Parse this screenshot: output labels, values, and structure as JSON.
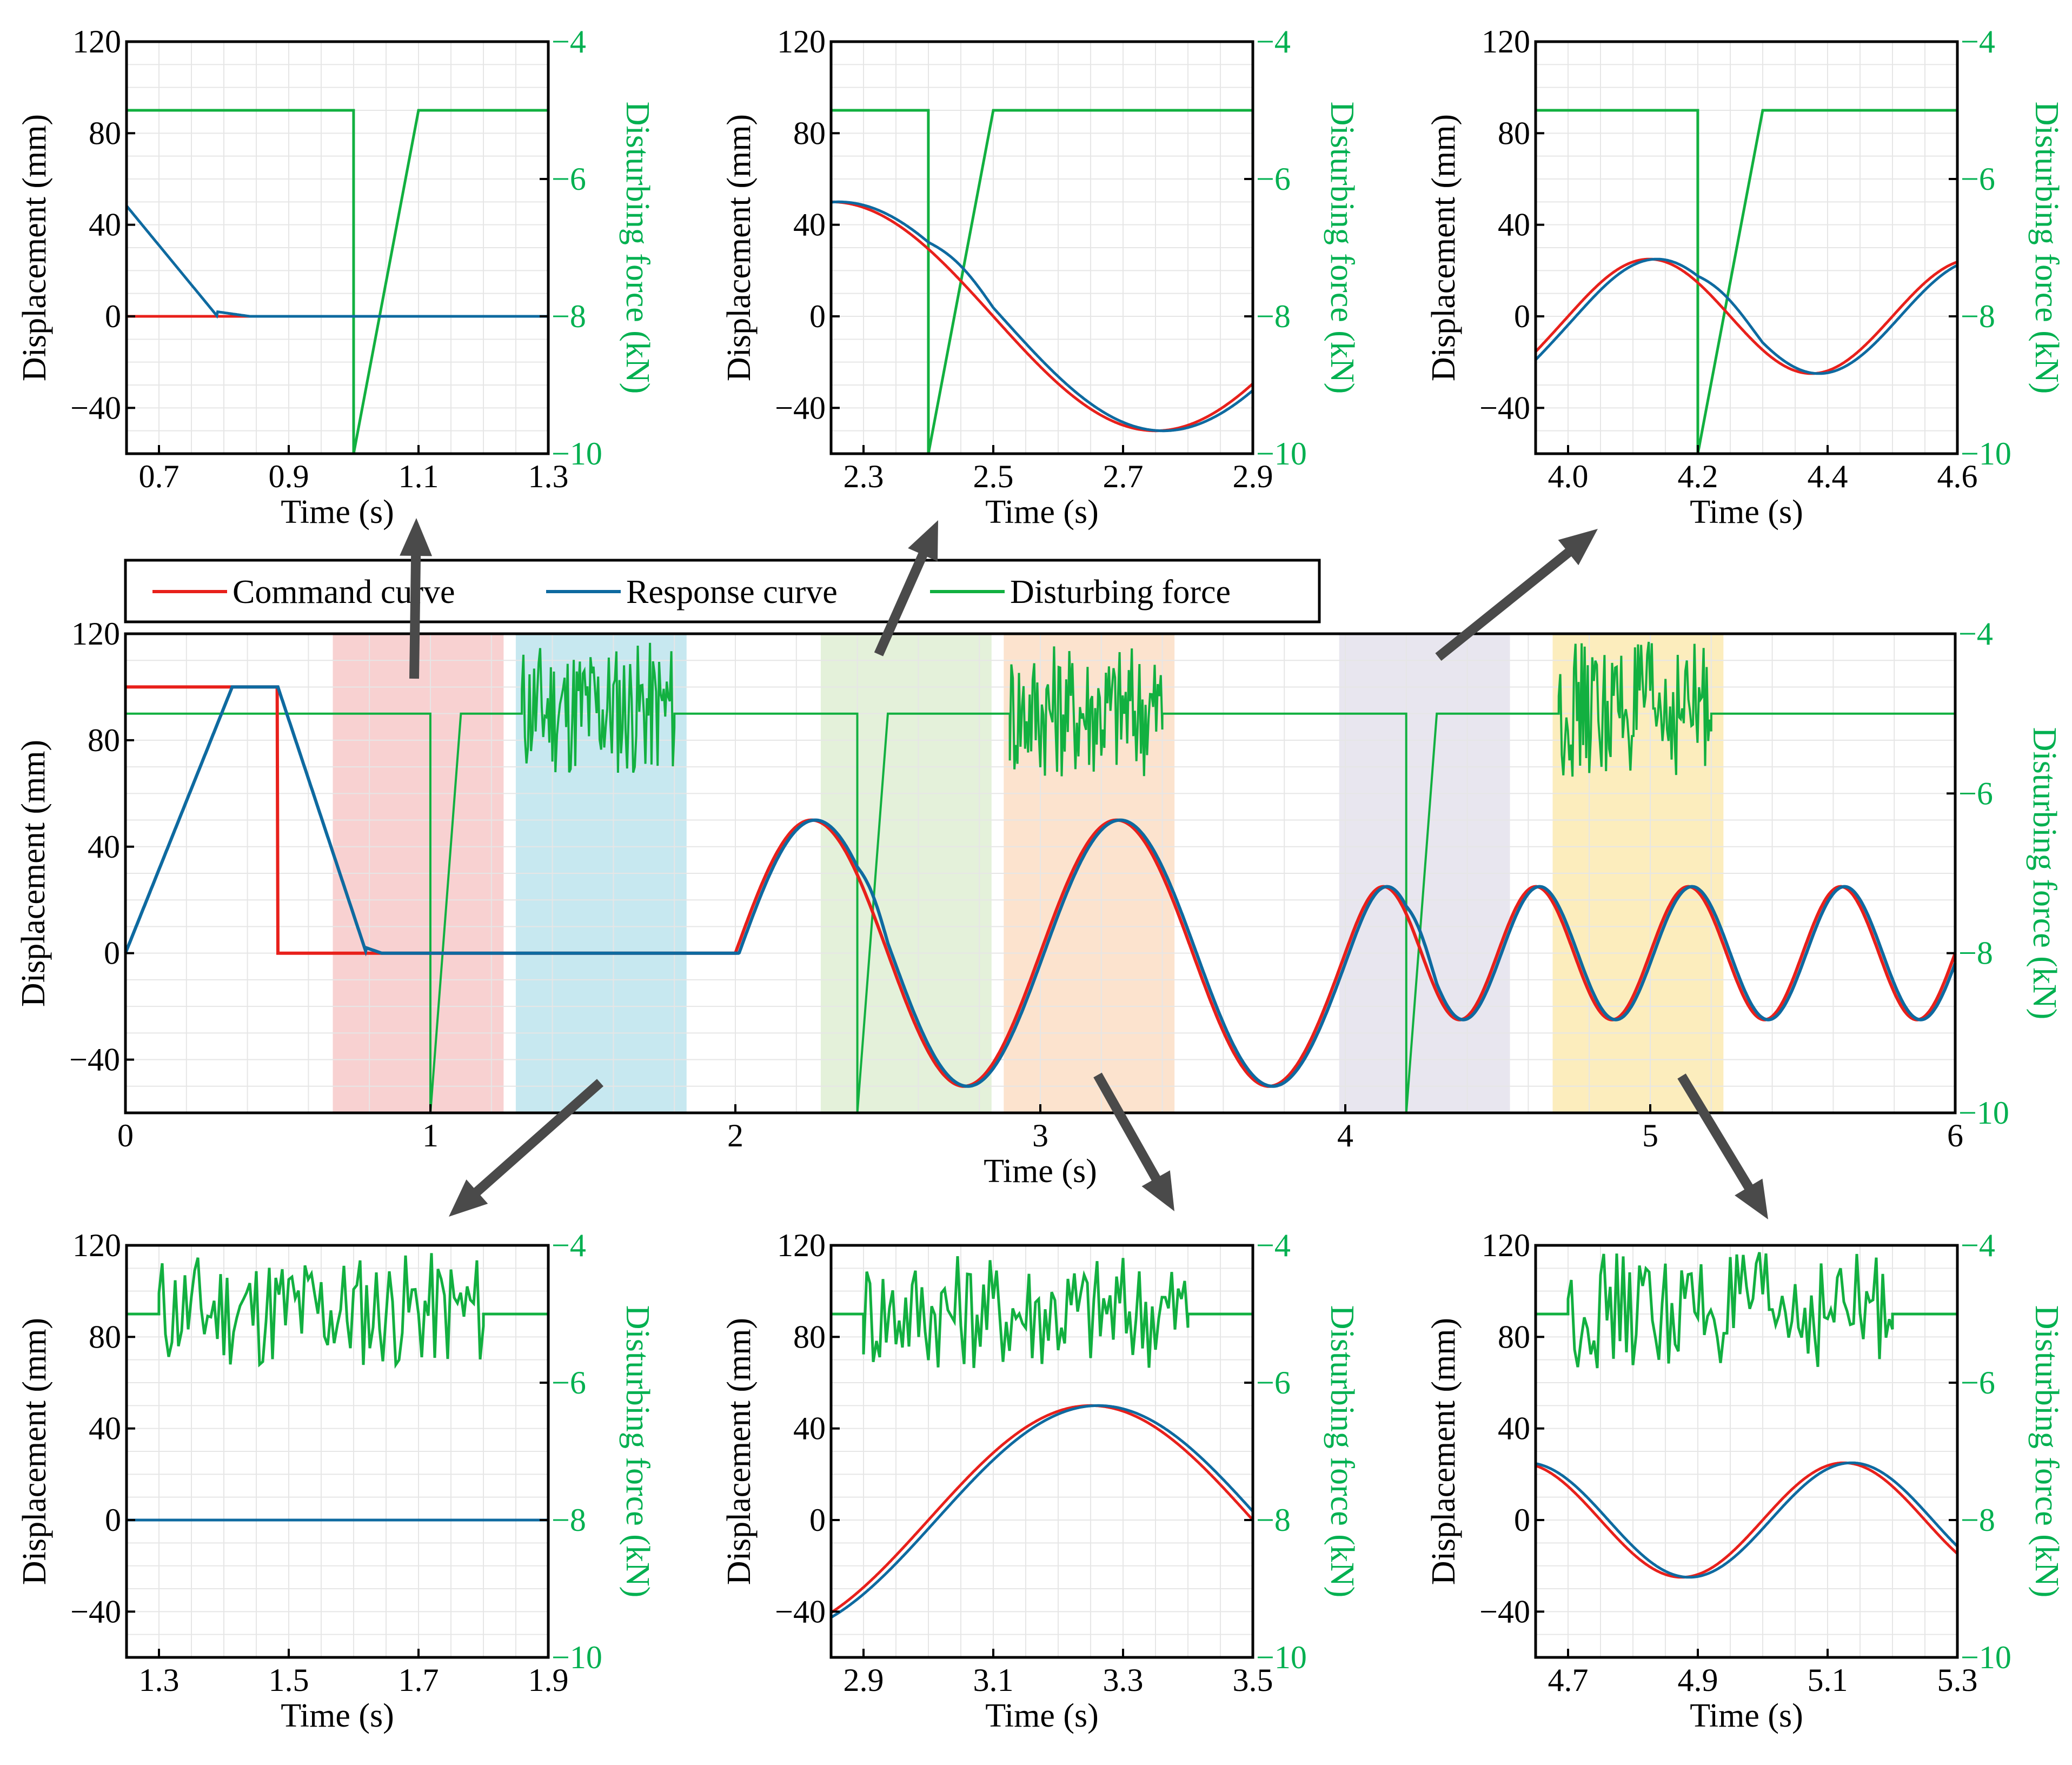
{
  "colors": {
    "command": "#e8201b",
    "response": "#0e6aa0",
    "disturb": "#12b040",
    "arrow": "#4a4a4a",
    "grid": "#e6e6e6"
  },
  "legend": {
    "command_label": "Command curve",
    "response_label": "Response curve",
    "disturb_label": "Disturbing force"
  },
  "chart_data": [
    {
      "id": "main",
      "type": "line",
      "xlabel": "Time (s)",
      "ylabel": "Displacement (mm)",
      "y2label": "Disturbing force (kN)",
      "xlim": [
        0,
        6
      ],
      "ylim": [
        -60,
        120
      ],
      "y2lim": [
        -10,
        -4
      ],
      "xticks": [
        0,
        1,
        2,
        3,
        4,
        5,
        6
      ],
      "xtick_labels": [
        "0",
        "1",
        "2",
        "3",
        "4",
        "5",
        "6"
      ],
      "yticks": [
        -40,
        0,
        40,
        80,
        120
      ],
      "ytick_labels": [
        "−40",
        "0",
        "40",
        "80",
        "120"
      ],
      "y2ticks": [
        -10,
        -8,
        -6,
        -4
      ],
      "y2tick_labels": [
        "−10",
        "−8",
        "−6",
        "−4"
      ],
      "highlight_windows": [
        {
          "name": "impact-1",
          "x": [
            0.68,
            1.24
          ],
          "color": "#f4b9b9"
        },
        {
          "name": "random-1",
          "x": [
            1.28,
            1.84
          ],
          "color": "#a9dbe8"
        },
        {
          "name": "impact-2",
          "x": [
            2.28,
            2.84
          ],
          "color": "#d6e9c6"
        },
        {
          "name": "random-2",
          "x": [
            2.88,
            3.44
          ],
          "color": "#fbd4b4"
        },
        {
          "name": "impact-3",
          "x": [
            3.98,
            4.54
          ],
          "color": "#dcd9e6"
        },
        {
          "name": "random-3",
          "x": [
            4.68,
            5.24
          ],
          "color": "#fbe39a"
        }
      ],
      "series": [
        {
          "name": "Command curve",
          "key": "cmd",
          "segments": "0–0.5 s: 100 mm hold; 0.5–2.0 s: 0 mm; 2.0–3.0 s: sine amp 50 mm, f 1 Hz; 3.0–4.0 s: sine amp 50 mm, f 1 Hz; 4.0–6.0 s: sine amp 25 mm, f 2 Hz"
        },
        {
          "name": "Response curve",
          "key": "resp",
          "segments": "0–0.35 s ramp 0→100 mm; hold to 0.5 s; 0.5–0.8 s ramp 100→0 mm; follows command with ~0.01 s lag"
        },
        {
          "name": "Disturbing force",
          "key": "dist",
          "segments": "baseline −5 kN; step drop to −10 kN at 1.0, 2.4, 4.2 s recovering linearly over 0.1 s; random −5.8 to −4.1 kN in 1.3–1.8, 2.9–3.4, 4.7–5.2 s"
        }
      ]
    },
    {
      "id": "zoom-top-1",
      "type": "line",
      "xlabel": "Time (s)",
      "ylabel": "Displacement (mm)",
      "y2label": "Disturbing force (kN)",
      "xlim": [
        0.65,
        1.3
      ],
      "ylim": [
        -60,
        120
      ],
      "y2lim": [
        -10,
        -4
      ],
      "xticks": [
        0.7,
        0.9,
        1.1,
        1.3
      ],
      "xtick_labels": [
        "0.7",
        "0.9",
        "1.1",
        "1.3"
      ],
      "yticks": [
        -40,
        0,
        40,
        80,
        120
      ],
      "ytick_labels": [
        "−40",
        "0",
        "40",
        "80",
        "120"
      ],
      "y2ticks": [
        -10,
        -8,
        -6,
        -4
      ],
      "y2tick_labels": [
        "−10",
        "−8",
        "−6",
        "−4"
      ]
    },
    {
      "id": "zoom-top-2",
      "type": "line",
      "xlabel": "Time (s)",
      "ylabel": "Displacement (mm)",
      "y2label": "Disturbing force (kN)",
      "xlim": [
        2.25,
        2.9
      ],
      "ylim": [
        -60,
        120
      ],
      "y2lim": [
        -10,
        -4
      ],
      "xticks": [
        2.3,
        2.5,
        2.7,
        2.9
      ],
      "xtick_labels": [
        "2.3",
        "2.5",
        "2.7",
        "2.9"
      ],
      "yticks": [
        -40,
        0,
        40,
        80,
        120
      ],
      "ytick_labels": [
        "−40",
        "0",
        "40",
        "80",
        "120"
      ],
      "y2ticks": [
        -10,
        -8,
        -6,
        -4
      ],
      "y2tick_labels": [
        "−10",
        "−8",
        "−6",
        "−4"
      ]
    },
    {
      "id": "zoom-top-3",
      "type": "line",
      "xlabel": "Time (s)",
      "ylabel": "Displacement (mm)",
      "y2label": "Disturbing force (kN)",
      "xlim": [
        3.95,
        4.6
      ],
      "ylim": [
        -60,
        120
      ],
      "y2lim": [
        -10,
        -4
      ],
      "xticks": [
        4.0,
        4.2,
        4.4,
        4.6
      ],
      "xtick_labels": [
        "4.0",
        "4.2",
        "4.4",
        "4.6"
      ],
      "yticks": [
        -40,
        0,
        40,
        80,
        120
      ],
      "ytick_labels": [
        "−40",
        "0",
        "40",
        "80",
        "120"
      ],
      "y2ticks": [
        -10,
        -8,
        -6,
        -4
      ],
      "y2tick_labels": [
        "−10",
        "−8",
        "−6",
        "−4"
      ]
    },
    {
      "id": "zoom-bot-1",
      "type": "line",
      "xlabel": "Time (s)",
      "ylabel": "Displacement (mm)",
      "y2label": "Disturbing force (kN)",
      "xlim": [
        1.25,
        1.9
      ],
      "ylim": [
        -60,
        120
      ],
      "y2lim": [
        -10,
        -4
      ],
      "xticks": [
        1.3,
        1.5,
        1.7,
        1.9
      ],
      "xtick_labels": [
        "1.3",
        "1.5",
        "1.7",
        "1.9"
      ],
      "yticks": [
        -40,
        0,
        40,
        80,
        120
      ],
      "ytick_labels": [
        "−40",
        "0",
        "40",
        "80",
        "120"
      ],
      "y2ticks": [
        -10,
        -8,
        -6,
        -4
      ],
      "y2tick_labels": [
        "−10",
        "−8",
        "−6",
        "−4"
      ]
    },
    {
      "id": "zoom-bot-2",
      "type": "line",
      "xlabel": "Time (s)",
      "ylabel": "Displacement (mm)",
      "y2label": "Disturbing force (kN)",
      "xlim": [
        2.85,
        3.5
      ],
      "ylim": [
        -60,
        120
      ],
      "y2lim": [
        -10,
        -4
      ],
      "xticks": [
        2.9,
        3.1,
        3.3,
        3.5
      ],
      "xtick_labels": [
        "2.9",
        "3.1",
        "3.3",
        "3.5"
      ],
      "yticks": [
        -40,
        0,
        40,
        80,
        120
      ],
      "ytick_labels": [
        "−40",
        "0",
        "40",
        "80",
        "120"
      ],
      "y2ticks": [
        -10,
        -8,
        -6,
        -4
      ],
      "y2tick_labels": [
        "−10",
        "−8",
        "−6",
        "−4"
      ]
    },
    {
      "id": "zoom-bot-3",
      "type": "line",
      "xlabel": "Time (s)",
      "ylabel": "Displacement (mm)",
      "y2label": "Disturbing force (kN)",
      "xlim": [
        4.65,
        5.3
      ],
      "ylim": [
        -60,
        120
      ],
      "y2lim": [
        -10,
        -4
      ],
      "xticks": [
        4.7,
        4.9,
        5.1,
        5.3
      ],
      "xtick_labels": [
        "4.7",
        "4.9",
        "5.1",
        "5.3"
      ],
      "yticks": [
        -40,
        0,
        40,
        80,
        120
      ],
      "ytick_labels": [
        "−40",
        "0",
        "40",
        "80",
        "120"
      ],
      "y2ticks": [
        -10,
        -8,
        -6,
        -4
      ],
      "y2tick_labels": [
        "−10",
        "−8",
        "−6",
        "−4"
      ]
    }
  ]
}
